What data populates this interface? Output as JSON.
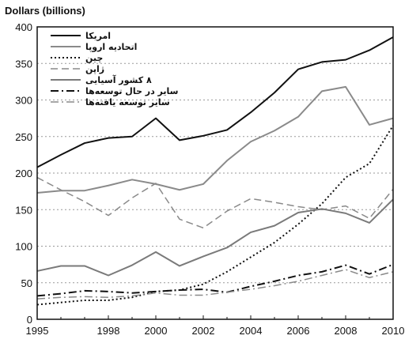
{
  "chart_data": {
    "type": "line",
    "title": "",
    "ylabel": "Dollars (billions)",
    "xlabel": "",
    "xlim": [
      1995,
      2010
    ],
    "ylim": [
      0,
      400
    ],
    "x_ticks": [
      "1995",
      "1998",
      "2000",
      "2002",
      "2004",
      "2006",
      "2008",
      "2010"
    ],
    "y_ticks": [
      "0",
      "50",
      "100",
      "150",
      "200",
      "250",
      "300",
      "350",
      "400"
    ],
    "grid": "horizontal-dashed",
    "legend_position": "top-left",
    "x": [
      1995,
      1996,
      1997,
      1998,
      1999,
      2000,
      2001,
      2002,
      2003,
      2004,
      2005,
      2006,
      2007,
      2008,
      2009,
      2010
    ],
    "series": [
      {
        "name": "امریکا",
        "color": "#111111",
        "width": 2,
        "dash": "",
        "values": [
          208,
          225,
          241,
          248,
          250,
          275,
          245,
          251,
          259,
          283,
          310,
          342,
          352,
          355,
          368,
          386
        ]
      },
      {
        "name": "اتحادیه اروپا",
        "color": "#8a8a8a",
        "width": 2,
        "dash": "",
        "values": [
          173,
          176,
          176,
          183,
          191,
          185,
          177,
          185,
          217,
          243,
          258,
          277,
          312,
          318,
          266,
          275
        ]
      },
      {
        "name": "چین",
        "color": "#111111",
        "width": 2,
        "dash": "2,3",
        "values": [
          20,
          23,
          26,
          26,
          30,
          38,
          40,
          48,
          65,
          85,
          105,
          130,
          158,
          194,
          213,
          265
        ]
      },
      {
        "name": "ژاپن",
        "color": "#8a8a8a",
        "width": 1.5,
        "dash": "9,5",
        "values": [
          194,
          177,
          161,
          142,
          166,
          186,
          137,
          125,
          148,
          165,
          160,
          154,
          150,
          155,
          138,
          178
        ]
      },
      {
        "name": "۸ کشور آسیایی",
        "color": "#7a7a7a",
        "width": 2,
        "dash": "",
        "values": [
          66,
          73,
          73,
          60,
          74,
          92,
          73,
          86,
          98,
          119,
          128,
          146,
          151,
          145,
          132,
          164
        ]
      },
      {
        "name": "سایر در حال توسعه‌ها",
        "color": "#111111",
        "width": 2,
        "dash": "10,4,2,4",
        "values": [
          32,
          35,
          39,
          38,
          36,
          38,
          40,
          41,
          37,
          45,
          52,
          60,
          65,
          74,
          62,
          75
        ]
      },
      {
        "name": "سایر توسعه یافته‌ها",
        "color": "#8a8a8a",
        "width": 1.5,
        "dash": "10,4,2,4",
        "values": [
          28,
          30,
          31,
          30,
          32,
          36,
          33,
          33,
          37,
          41,
          46,
          52,
          60,
          68,
          57,
          65
        ]
      }
    ]
  }
}
